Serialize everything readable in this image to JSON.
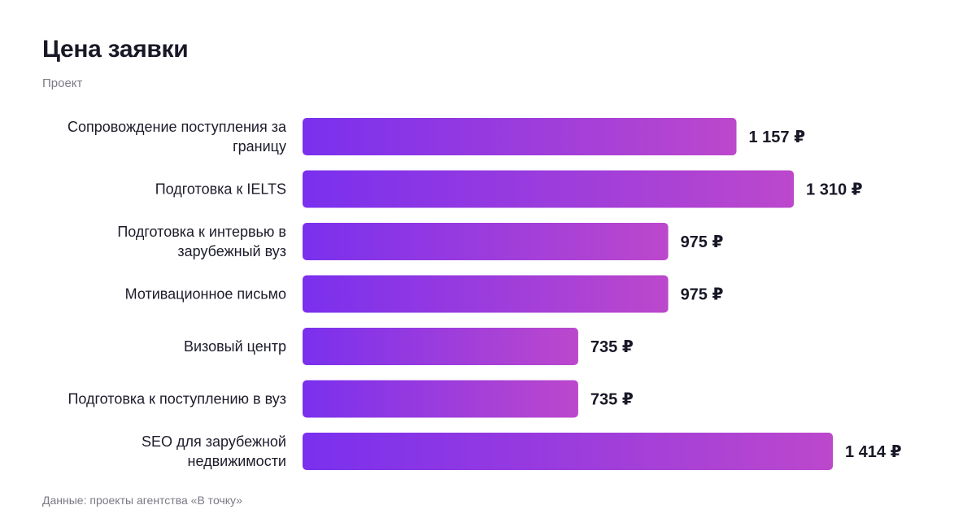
{
  "header": {
    "title": "Цена заявки",
    "subtitle": "Проект"
  },
  "footnote": "Данные: проекты агентства «В точку»",
  "colors": {
    "bar_start": "#7a30ee",
    "bar_end": "#bc48cc",
    "text": "#1c1c2b",
    "muted": "#7a7a86"
  },
  "chart_data": {
    "type": "bar",
    "orientation": "horizontal",
    "title": "Цена заявки",
    "subtitle": "Проект",
    "categories": [
      "Сопровождение поступления за границу",
      "Подготовка к IELTS",
      "Подготовка к интервью в зарубежный вуз",
      "Мотивационное письмо",
      "Визовый центр",
      "Подготовка к поступлению в вуз",
      "SEO для зарубежной недвижимости"
    ],
    "category_lines": [
      [
        "Сопровождение поступления за",
        "границу"
      ],
      [
        "Подготовка к IELTS"
      ],
      [
        "Подготовка к интервью в",
        "зарубежный вуз"
      ],
      [
        "Мотивационное письмо"
      ],
      [
        "Визовый центр"
      ],
      [
        "Подготовка к поступлению в вуз"
      ],
      [
        "SEO для зарубежной",
        "недвижимости"
      ]
    ],
    "values": [
      1157,
      1310,
      975,
      975,
      735,
      735,
      1414
    ],
    "value_labels": [
      "1 157 ₽",
      "1 310 ₽",
      "975 ₽",
      "975 ₽",
      "735 ₽",
      "735 ₽",
      "1 414 ₽"
    ],
    "xlim": [
      0,
      1414
    ],
    "grid": false,
    "legend": "none",
    "source": "Данные: проекты агентства «В точку»"
  }
}
